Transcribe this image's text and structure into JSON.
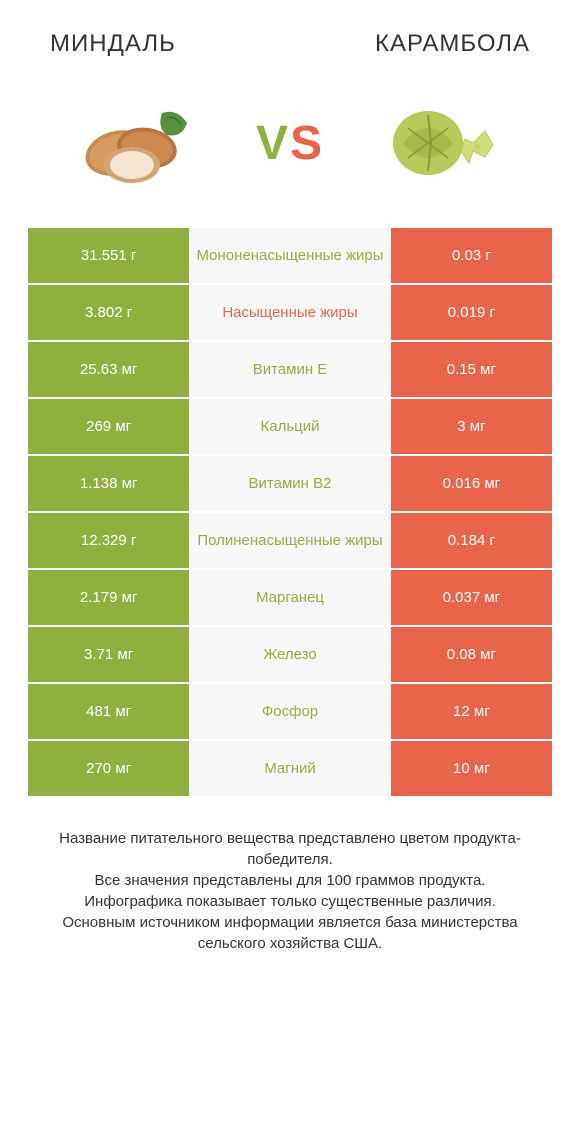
{
  "header": {
    "left_title": "МИНДАЛЬ",
    "right_title": "КАРАМБОЛА"
  },
  "vs": {
    "v": "V",
    "s": "S"
  },
  "colors": {
    "green": "#8fb03e",
    "orange": "#e8654c",
    "mid_bg": "#f8f8f8",
    "text": "#333333"
  },
  "rows": [
    {
      "left": "31.551 г",
      "mid": "Мононенасыщенные жиры",
      "right": "0.03 г",
      "mid_color": "#8fb03e"
    },
    {
      "left": "3.802 г",
      "mid": "Насыщенные жиры",
      "right": "0.019 г",
      "mid_color": "#e8654c"
    },
    {
      "left": "25.63 мг",
      "mid": "Витамин E",
      "right": "0.15 мг",
      "mid_color": "#8fb03e"
    },
    {
      "left": "269 мг",
      "mid": "Кальций",
      "right": "3 мг",
      "mid_color": "#8fb03e"
    },
    {
      "left": "1.138 мг",
      "mid": "Витамин B2",
      "right": "0.016 мг",
      "mid_color": "#8fb03e"
    },
    {
      "left": "12.329 г",
      "mid": "Полиненасыщенные жиры",
      "right": "0.184 г",
      "mid_color": "#8fb03e"
    },
    {
      "left": "2.179 мг",
      "mid": "Марганец",
      "right": "0.037 мг",
      "mid_color": "#8fb03e"
    },
    {
      "left": "3.71 мг",
      "mid": "Железо",
      "right": "0.08 мг",
      "mid_color": "#8fb03e"
    },
    {
      "left": "481 мг",
      "mid": "Фосфор",
      "right": "12 мг",
      "mid_color": "#8fb03e"
    },
    {
      "left": "270 мг",
      "mid": "Магний",
      "right": "10 мг",
      "mid_color": "#8fb03e"
    }
  ],
  "footnote": "Название питательного вещества представлено цветом продукта-победителя.\nВсе значения представлены для 100 граммов продукта.\nИнфографика показывает только существенные различия.\nОсновным источником информации является база министерства сельского хозяйства США."
}
